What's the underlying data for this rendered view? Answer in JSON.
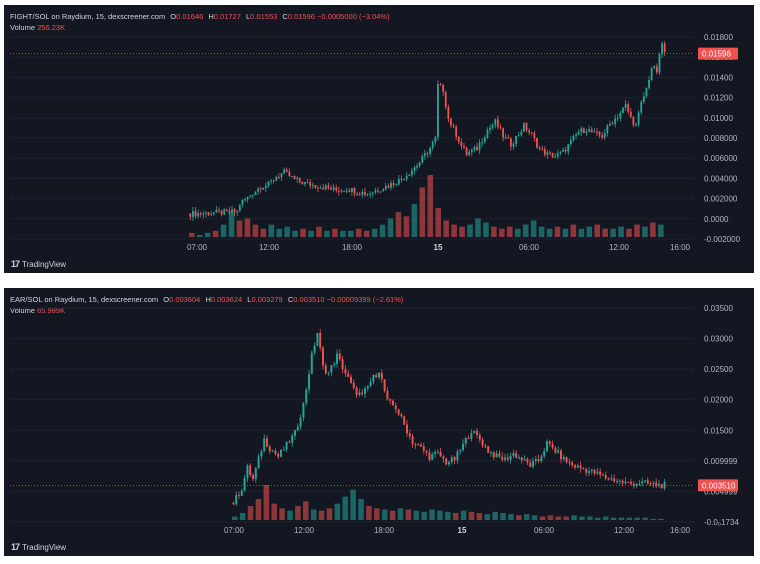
{
  "colors": {
    "background": "#131722",
    "up": "#26a69a",
    "down": "#ef5350",
    "text": "#b2b5be",
    "price_line": "#ef5350"
  },
  "branding": {
    "logo_text": "TradingView",
    "logo_icon": "tradingview-logo-icon"
  },
  "chart_data": [
    {
      "type": "candlestick",
      "title": "FIGHT/SOL on Raydium, 15, dexscreener.com",
      "ohlc": {
        "open_label": "O",
        "open": "0.01646",
        "high_label": "H",
        "high": "0.01727",
        "low_label": "L",
        "low": "0.01553",
        "close_label": "C",
        "close": "0.01596",
        "change": "−0.0005000 (−3.04%)"
      },
      "volume_label": "Volume",
      "volume_value": "256.23K",
      "current_price": "0.01596",
      "y_ticks": [
        "0.01800",
        "0.01600",
        "0.01400",
        "0.01200",
        "0.01000",
        "0.008000",
        "0.006000",
        "0.004000",
        "0.002000",
        "0.0000",
        "-0.002000"
      ],
      "ylim": [
        -0.0022,
        0.0186
      ],
      "x_ticks": [
        "07:00",
        "12:00",
        "18:00",
        "15",
        "06:00",
        "12:00",
        "16:00"
      ],
      "close_points": [
        [
          0,
          0.0001
        ],
        [
          10,
          0.0002
        ],
        [
          18,
          0.0003
        ],
        [
          19,
          0.0011
        ],
        [
          22,
          0.0017
        ],
        [
          24,
          0.0022
        ],
        [
          27,
          0.0028
        ],
        [
          30,
          0.003
        ],
        [
          33,
          0.0038
        ],
        [
          36,
          0.0042
        ],
        [
          40,
          0.0035
        ],
        [
          44,
          0.0031
        ],
        [
          48,
          0.0029
        ],
        [
          52,
          0.0027
        ],
        [
          56,
          0.0024
        ],
        [
          60,
          0.0026
        ],
        [
          64,
          0.0023
        ],
        [
          68,
          0.0021
        ],
        [
          72,
          0.0025
        ],
        [
          76,
          0.0029
        ],
        [
          80,
          0.0034
        ],
        [
          84,
          0.0042
        ],
        [
          88,
          0.0052
        ],
        [
          92,
          0.0066
        ],
        [
          94,
          0.0075
        ],
        [
          95,
          0.0128
        ],
        [
          97,
          0.0124
        ],
        [
          99,
          0.0095
        ],
        [
          102,
          0.008
        ],
        [
          104,
          0.0068
        ],
        [
          106,
          0.006
        ],
        [
          110,
          0.0066
        ],
        [
          114,
          0.0084
        ],
        [
          117,
          0.0092
        ],
        [
          120,
          0.0078
        ],
        [
          123,
          0.007
        ],
        [
          126,
          0.008
        ],
        [
          128,
          0.0088
        ],
        [
          131,
          0.0079
        ],
        [
          134,
          0.0065
        ],
        [
          137,
          0.006
        ],
        [
          140,
          0.0058
        ],
        [
          143,
          0.0062
        ],
        [
          146,
          0.0072
        ],
        [
          149,
          0.0082
        ],
        [
          152,
          0.0085
        ],
        [
          155,
          0.008
        ],
        [
          158,
          0.0078
        ],
        [
          161,
          0.009
        ],
        [
          164,
          0.0098
        ],
        [
          167,
          0.0108
        ],
        [
          169,
          0.0096
        ],
        [
          171,
          0.0088
        ],
        [
          173,
          0.011
        ],
        [
          175,
          0.0125
        ],
        [
          177,
          0.0146
        ],
        [
          179,
          0.0142
        ],
        [
          181,
          0.017
        ],
        [
          182,
          0.016
        ]
      ],
      "volumes": [
        2,
        1,
        2,
        3,
        6,
        12,
        8,
        9,
        6,
        4,
        6,
        4,
        5,
        3,
        4,
        3,
        5,
        3,
        4,
        3,
        3,
        4,
        3,
        4,
        6,
        9,
        12,
        10,
        16,
        24,
        30,
        14,
        8,
        6,
        5,
        6,
        9,
        7,
        5,
        4,
        5,
        4,
        6,
        8,
        5,
        4,
        5,
        4,
        6,
        4,
        5,
        6,
        4,
        4,
        5,
        4,
        6,
        5,
        7,
        6
      ],
      "volume_max": 30
    },
    {
      "type": "candlestick",
      "title": "EAR/SOL on Raydium, 15, dexscreener.com",
      "ohlc": {
        "open_label": "O",
        "open": "0.003604",
        "high_label": "H",
        "high": "0.003624",
        "low_label": "L",
        "low": "0.003279",
        "close_label": "C",
        "close": "0.003510",
        "change": "−0.00009399 (−2.61%)"
      },
      "volume_label": "Volume",
      "volume_value": "65.989K",
      "current_price": "0.003510",
      "y_ticks": [
        "0.03500",
        "0.03000",
        "0.02500",
        "0.02000",
        "0.01500",
        "0.009999",
        "0.004999",
        "-0.0₀1734"
      ],
      "ylim": [
        -0.0025,
        0.036
      ],
      "x_ticks": [
        "07:00",
        "12:00",
        "18:00",
        "15",
        "06:00",
        "12:00",
        "16:00"
      ],
      "close_points": [
        [
          0,
          0.0005
        ],
        [
          3,
          0.003
        ],
        [
          5,
          0.0065
        ],
        [
          7,
          0.0045
        ],
        [
          9,
          0.008
        ],
        [
          11,
          0.0115
        ],
        [
          13,
          0.01
        ],
        [
          16,
          0.0085
        ],
        [
          19,
          0.0105
        ],
        [
          22,
          0.0125
        ],
        [
          25,
          0.0175
        ],
        [
          28,
          0.026
        ],
        [
          30,
          0.03
        ],
        [
          32,
          0.024
        ],
        [
          34,
          0.023
        ],
        [
          37,
          0.026
        ],
        [
          40,
          0.023
        ],
        [
          43,
          0.02
        ],
        [
          46,
          0.019
        ],
        [
          49,
          0.0215
        ],
        [
          52,
          0.0235
        ],
        [
          55,
          0.018
        ],
        [
          58,
          0.017
        ],
        [
          61,
          0.014
        ],
        [
          64,
          0.011
        ],
        [
          67,
          0.01
        ],
        [
          70,
          0.0085
        ],
        [
          73,
          0.009
        ],
        [
          76,
          0.0075
        ],
        [
          79,
          0.008
        ],
        [
          82,
          0.0105
        ],
        [
          85,
          0.013
        ],
        [
          88,
          0.0115
        ],
        [
          91,
          0.0095
        ],
        [
          94,
          0.0085
        ],
        [
          97,
          0.008
        ],
        [
          100,
          0.009
        ],
        [
          103,
          0.008
        ],
        [
          106,
          0.007
        ],
        [
          109,
          0.0078
        ],
        [
          112,
          0.0108
        ],
        [
          115,
          0.0095
        ],
        [
          118,
          0.008
        ],
        [
          121,
          0.007
        ],
        [
          124,
          0.0065
        ],
        [
          127,
          0.006
        ],
        [
          130,
          0.0055
        ],
        [
          133,
          0.0048
        ],
        [
          136,
          0.0045
        ],
        [
          139,
          0.004
        ],
        [
          142,
          0.0038
        ],
        [
          145,
          0.004
        ],
        [
          148,
          0.0038
        ],
        [
          151,
          0.0036
        ],
        [
          154,
          0.0035
        ]
      ],
      "volumes": [
        3,
        6,
        12,
        18,
        30,
        14,
        10,
        8,
        12,
        16,
        9,
        8,
        10,
        14,
        20,
        26,
        18,
        12,
        10,
        9,
        8,
        10,
        9,
        8,
        7,
        9,
        8,
        7,
        6,
        8,
        7,
        6,
        5,
        7,
        6,
        5,
        4,
        5,
        4,
        3,
        4,
        3,
        3,
        4,
        3,
        3,
        2,
        3,
        2,
        2,
        2,
        2,
        2,
        1,
        1
      ],
      "volume_max": 30
    }
  ]
}
